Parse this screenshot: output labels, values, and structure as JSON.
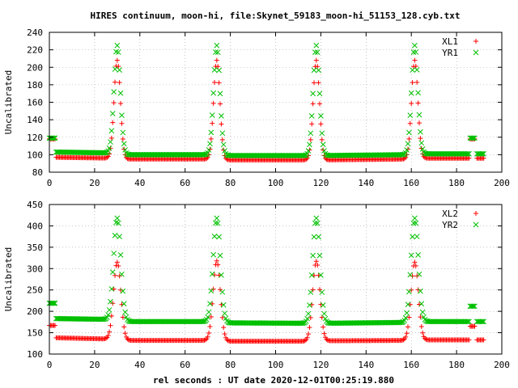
{
  "title": "HIRES continuum, moon-hi, file:Skynet_59183_moon-hi_51153_128.cyb.txt",
  "xlabel": "rel seconds : UT date 2020-12-01T00:25:19.880",
  "colors": {
    "red": "#ff0000",
    "green": "#00c000",
    "axis": "#000000",
    "grid": "#a0a0a0"
  },
  "chart_data": [
    {
      "type": "scatter",
      "panel": "top",
      "ylabel": "Uncalibrated",
      "xlim": [
        0,
        200
      ],
      "ylim": [
        80,
        240
      ],
      "xticks": [
        0,
        20,
        40,
        60,
        80,
        100,
        120,
        140,
        160,
        180,
        200
      ],
      "yticks": [
        80,
        100,
        120,
        140,
        160,
        180,
        200,
        220,
        240
      ],
      "grid": true,
      "legend_position": "top-right",
      "series": [
        {
          "name": "XL1",
          "marker": "+",
          "color": "#ff0000",
          "x_start": 0,
          "x_end": 192,
          "cal_segments": [
            [
              0,
              2.5,
              118
            ],
            [
              186,
              188,
              118
            ]
          ],
          "baseline": [
            [
              3,
              97
            ],
            [
              28,
              96
            ],
            [
              30,
              95
            ],
            [
              72,
              95
            ],
            [
              77,
              94
            ],
            [
              115,
              94
            ],
            [
              121,
              94
            ],
            [
              158,
              95
            ],
            [
              165,
              96
            ],
            [
              192,
              96
            ]
          ],
          "peaks": [
            [
              30,
              208,
              1.4
            ],
            [
              74,
              208,
              1.4
            ],
            [
              118,
              208,
              1.4
            ],
            [
              161.5,
              208,
              1.4
            ]
          ]
        },
        {
          "name": "YR1",
          "marker": "x",
          "color": "#00c000",
          "x_start": 0,
          "x_end": 192,
          "cal_segments": [
            [
              0,
              2.5,
              119
            ],
            [
              186,
              188,
              119
            ]
          ],
          "baseline": [
            [
              3,
              103
            ],
            [
              28,
              102
            ],
            [
              30,
              100
            ],
            [
              72,
              100
            ],
            [
              77,
              99
            ],
            [
              115,
              99
            ],
            [
              121,
              99
            ],
            [
              158,
              100
            ],
            [
              165,
              101
            ],
            [
              192,
              101
            ]
          ],
          "peaks": [
            [
              30,
              225,
              1.4
            ],
            [
              74,
              225,
              1.4
            ],
            [
              118,
              225,
              1.4
            ],
            [
              161.5,
              225,
              1.4
            ]
          ]
        }
      ]
    },
    {
      "type": "scatter",
      "panel": "bottom",
      "ylabel": "Uncalibrated",
      "xlim": [
        0,
        200
      ],
      "ylim": [
        100,
        450
      ],
      "xticks": [
        0,
        20,
        40,
        60,
        80,
        100,
        120,
        140,
        160,
        180,
        200
      ],
      "yticks": [
        100,
        150,
        200,
        250,
        300,
        350,
        400,
        450
      ],
      "grid": true,
      "legend_position": "top-right",
      "series": [
        {
          "name": "XL2",
          "marker": "+",
          "color": "#ff0000",
          "x_start": 0,
          "x_end": 192,
          "cal_segments": [
            [
              0,
              2.5,
              167
            ],
            [
              186,
              188,
              165
            ]
          ],
          "baseline": [
            [
              3,
              138
            ],
            [
              28,
              135
            ],
            [
              30,
              132
            ],
            [
              72,
              132
            ],
            [
              77,
              130
            ],
            [
              115,
              130
            ],
            [
              121,
              131
            ],
            [
              158,
              132
            ],
            [
              165,
              133
            ],
            [
              192,
              133
            ]
          ],
          "peaks": [
            [
              30,
              315,
              1.6
            ],
            [
              74,
              318,
              1.6
            ],
            [
              118,
              317,
              1.6
            ],
            [
              161.5,
              315,
              1.6
            ]
          ]
        },
        {
          "name": "YR2",
          "marker": "x",
          "color": "#00c000",
          "x_start": 0,
          "x_end": 192,
          "cal_segments": [
            [
              0,
              2.5,
              219
            ],
            [
              186,
              188,
              212
            ]
          ],
          "baseline": [
            [
              3,
              183
            ],
            [
              28,
              181
            ],
            [
              30,
              176
            ],
            [
              72,
              176
            ],
            [
              77,
              173
            ],
            [
              115,
              172
            ],
            [
              121,
              172
            ],
            [
              158,
              174
            ],
            [
              165,
              176
            ],
            [
              192,
              176
            ]
          ],
          "peaks": [
            [
              30,
              418,
              1.6
            ],
            [
              74,
              418,
              1.6
            ],
            [
              118,
              418,
              1.6
            ],
            [
              161.5,
              418,
              1.6
            ]
          ]
        }
      ]
    }
  ]
}
